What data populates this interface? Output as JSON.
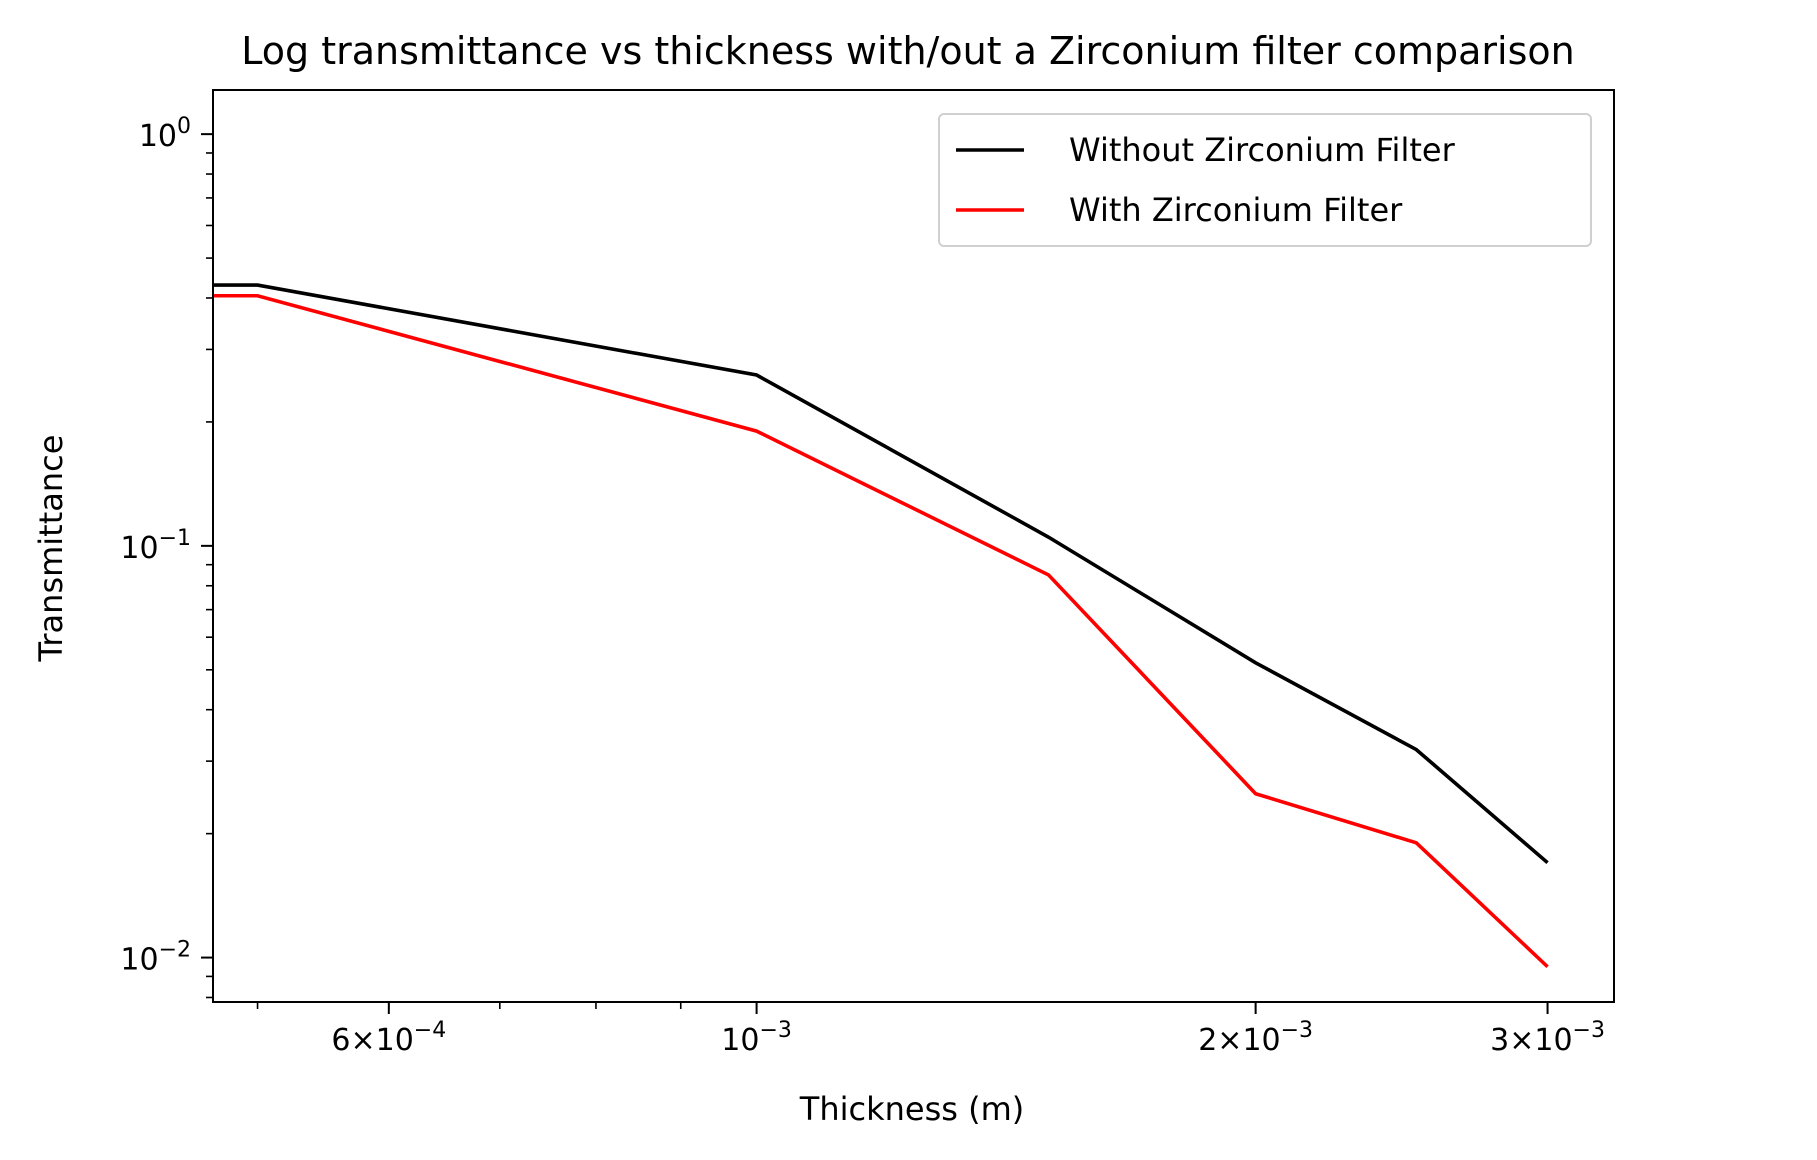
{
  "chart_data": {
    "type": "line",
    "title": "Log transmittance vs thickness with/out a Zirconium filter comparison",
    "xlabel": "Thickness (m)",
    "ylabel": "Transmittance",
    "x_scale": "log",
    "y_scale": "log",
    "xlim": [
      0.00047,
      0.00329
    ],
    "ylim": [
      0.0078,
      1.28
    ],
    "grid": false,
    "legend_position": "top-right",
    "x_ticks": [
      {
        "value": 0.0006,
        "mantissa": "6",
        "exponent": "−4"
      },
      {
        "value": 0.001,
        "mantissa": "",
        "exponent": "−3"
      },
      {
        "value": 0.002,
        "mantissa": "2",
        "exponent": "−3"
      },
      {
        "value": 0.003,
        "mantissa": "3",
        "exponent": "−3"
      }
    ],
    "y_ticks": [
      {
        "value": 1,
        "exponent": "0"
      },
      {
        "value": 0.1,
        "exponent": "−1"
      },
      {
        "value": 0.01,
        "exponent": "−2"
      }
    ],
    "series": [
      {
        "name": "Without Zirconium Filter",
        "color": "#000000",
        "x": [
          0.00047,
          0.0005,
          0.001,
          0.0015,
          0.002,
          0.0025,
          0.003
        ],
        "y": [
          0.43,
          0.43,
          0.26,
          0.105,
          0.052,
          0.032,
          0.017
        ]
      },
      {
        "name": "With Zirconium Filter",
        "color": "#ff0000",
        "x": [
          0.00047,
          0.0005,
          0.001,
          0.0015,
          0.002,
          0.0025,
          0.003
        ],
        "y": [
          0.405,
          0.405,
          0.19,
          0.085,
          0.025,
          0.019,
          0.0095
        ]
      }
    ]
  }
}
